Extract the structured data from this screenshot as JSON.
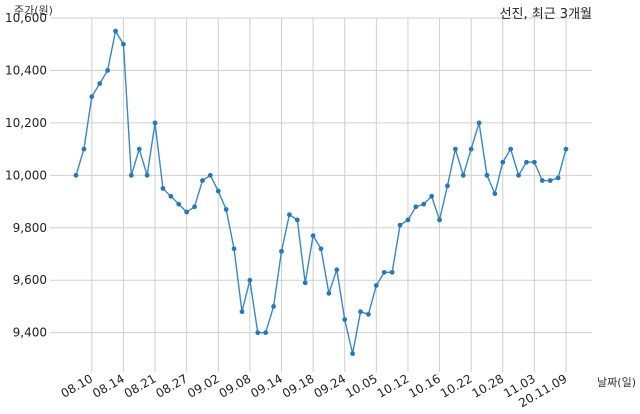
{
  "chart_data": {
    "type": "line",
    "title": "선진, 최근 3개월",
    "ylabel": "주가(원)",
    "xlabel": "날짜(일)",
    "ylim": [
      9250,
      10600
    ],
    "grid": true,
    "y_ticks": [
      9400,
      9600,
      9800,
      10000,
      10200,
      10400,
      10600
    ],
    "y_tick_labels": [
      "9,400",
      "9,600",
      "9,800",
      "10,000",
      "10,200",
      "10,400",
      "10,600"
    ],
    "x_tick_labels": [
      "08.10",
      "08.14",
      "08.21",
      "08.27",
      "09.02",
      "09.08",
      "09.14",
      "09.18",
      "09.24",
      "10.05",
      "10.12",
      "10.16",
      "10.22",
      "10.28",
      "11.03",
      "20.11.09"
    ],
    "x_tick_indices": [
      2,
      6,
      10,
      14,
      18,
      22,
      26,
      30,
      34,
      38,
      42,
      46,
      50,
      54,
      58,
      62
    ],
    "series": [
      {
        "values": [
          10000,
          10100,
          10300,
          10350,
          10400,
          10550,
          10500,
          10000,
          10100,
          10000,
          10200,
          9950,
          9920,
          9890,
          9860,
          9880,
          9980,
          10000,
          9940,
          9870,
          9720,
          9480,
          9600,
          9400,
          9400,
          9500,
          9710,
          9850,
          9830,
          9590,
          9770,
          9720,
          9550,
          9640,
          9450,
          9320,
          9480,
          9470,
          9580,
          9630,
          9630,
          9810,
          9830,
          9880,
          9890,
          9920,
          9830,
          9960,
          10100,
          10000,
          10100,
          10200,
          10000,
          9930,
          10050,
          10100,
          10000,
          10050,
          10050,
          9980,
          9980,
          9990,
          10100
        ]
      }
    ]
  }
}
